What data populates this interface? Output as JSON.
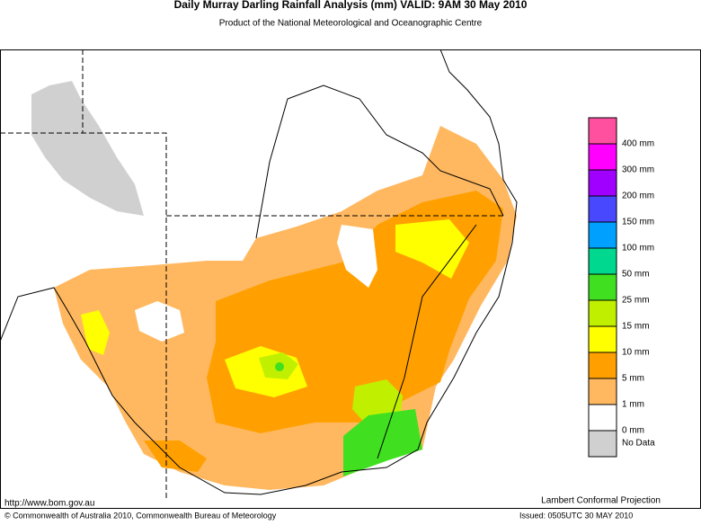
{
  "header": {
    "title": "Daily Murray Darling Rainfall Analysis (mm)  VALID: 9AM 30 May 2010",
    "subtitle": "Product of the National Meteorological and Oceanographic Centre"
  },
  "legend": {
    "colors": [
      "#ff50a0",
      "#ff00ff",
      "#a000ff",
      "#4848ff",
      "#00a0ff",
      "#00d890",
      "#40e020",
      "#c0f000",
      "#ffff00",
      "#ffa000",
      "#ffb860",
      "#ffffff",
      "#d0d0d0"
    ],
    "labels": [
      "400 mm",
      "300 mm",
      "200 mm",
      "150 mm",
      "100 mm",
      "50 mm",
      "25 mm",
      "15 mm",
      "10 mm",
      "5 mm",
      "1 mm",
      "0 mm",
      "No Data"
    ]
  },
  "footer": {
    "url": "http://www.bom.gov.au",
    "projection": "Lambert Conformal Projection",
    "copyright": "© Commonwealth of Australia 2010, Commonwealth Bureau of Meteorology",
    "issued": "Issued: 0505UTC 30 MAY 2010"
  }
}
